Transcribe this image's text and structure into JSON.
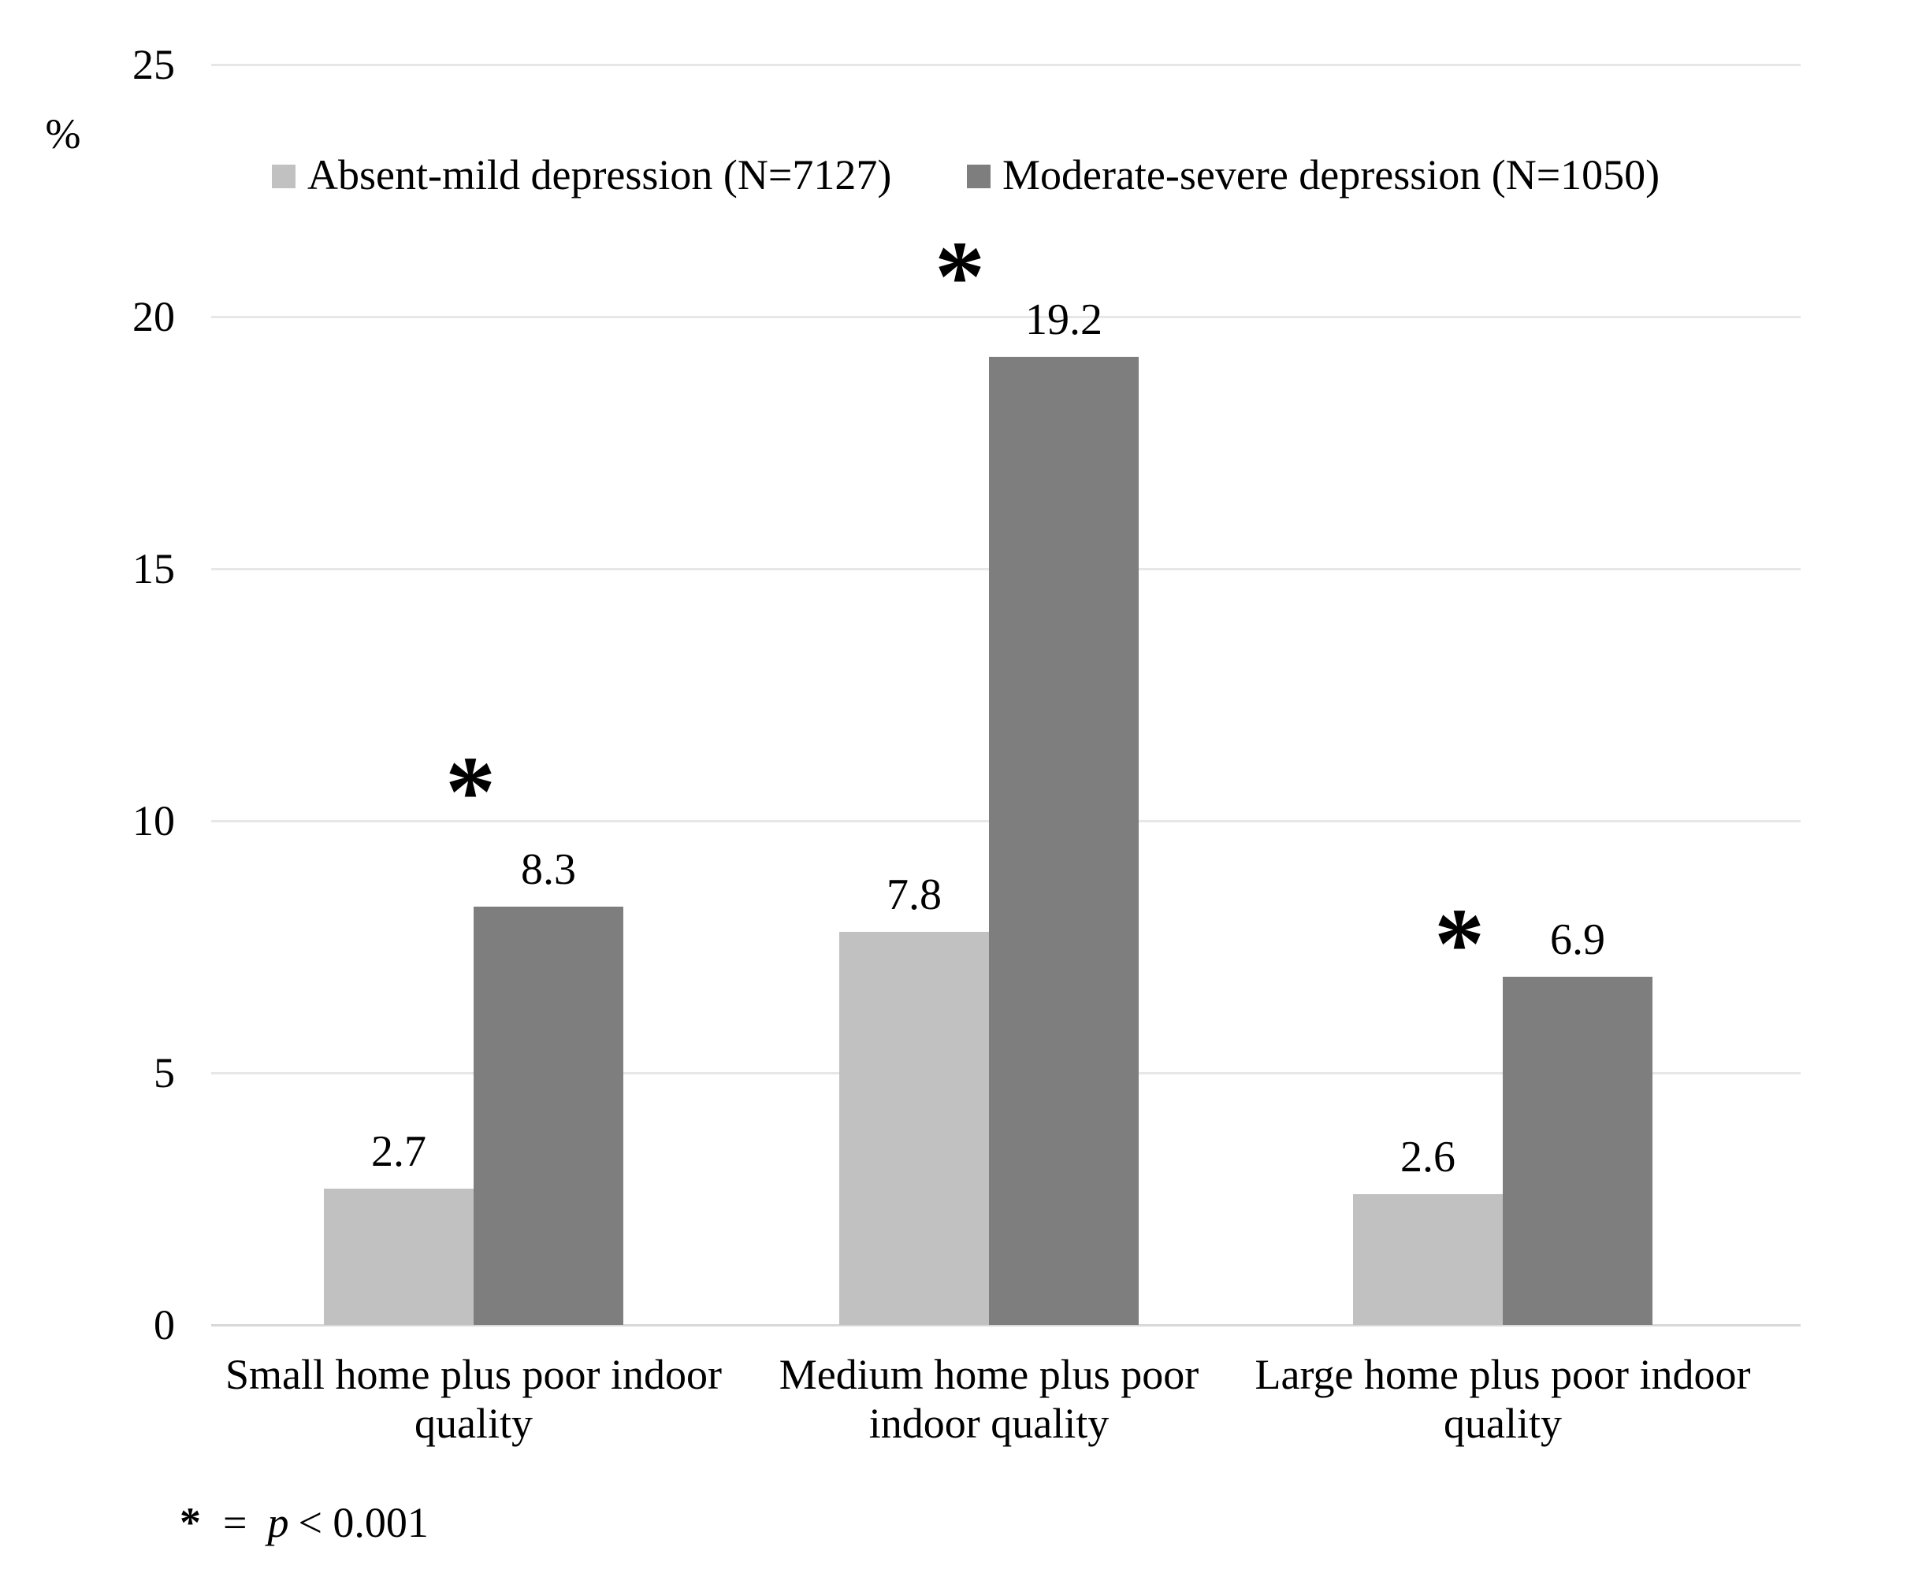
{
  "chart_data": {
    "type": "bar",
    "title": "",
    "ylabel": "%",
    "ylim": [
      0,
      25
    ],
    "yticks": [
      25,
      20,
      15,
      10,
      5,
      0
    ],
    "grid": "horizontal",
    "legend_position": "top",
    "categories": [
      "Small home plus poor indoor quality",
      "Medium home plus poor indoor quality",
      "Large home plus poor indoor quality"
    ],
    "category_lines": [
      [
        "Small home plus poor indoor",
        "quality"
      ],
      [
        "Medium home plus poor",
        "indoor quality"
      ],
      [
        "Large home plus poor indoor",
        "quality"
      ]
    ],
    "series": [
      {
        "name": "Absent-mild depression (N=7127)",
        "color": "#c1c1c1",
        "values": [
          2.7,
          7.8,
          2.6
        ]
      },
      {
        "name": "Moderate-severe depression (N=1050)",
        "color": "#7e7e7e",
        "values": [
          8.3,
          19.2,
          6.9
        ]
      }
    ],
    "significance": {
      "marker": "*",
      "groups_marked": [
        true,
        true,
        true
      ]
    }
  },
  "footnote": {
    "marker": "*",
    "equals": "=",
    "variable": "p",
    "condition": "< 0.001"
  }
}
